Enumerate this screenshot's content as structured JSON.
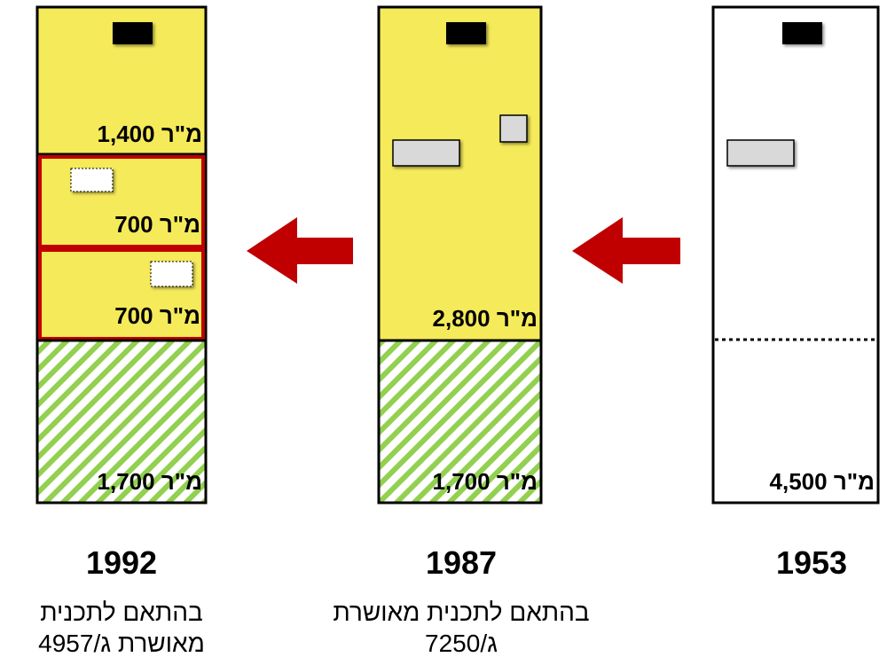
{
  "columns": [
    {
      "year": "1992",
      "caption": [
        "בהתאם לתכנית",
        "מאושרת ג/4957"
      ],
      "blocks": [
        "1,400 מ\"ר",
        "700 מ\"ר",
        "700 מ\"ר",
        "1,700 מ\"ר"
      ]
    },
    {
      "year": "1987",
      "caption": [
        "בהתאם לתכנית מאושרת",
        "ג/7250"
      ],
      "blocks": [
        "2,800 מ\"ר",
        "1,700 מ\"ר"
      ]
    },
    {
      "year": "1953",
      "caption": [],
      "blocks": [
        "4,500 מ\"ר"
      ]
    }
  ]
}
